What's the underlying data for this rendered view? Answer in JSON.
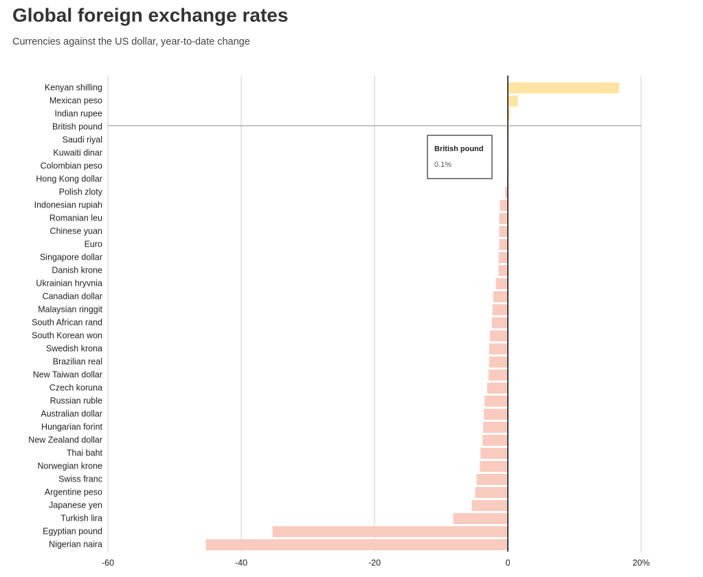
{
  "chart_data": {
    "type": "hbar",
    "title": "Global foreign exchange rates",
    "subtitle": "Currencies against the US dollar, year-to-date change",
    "categories": [
      "Kenyan shilling",
      "Mexican peso",
      "Indian rupee",
      "British pound",
      "Saudi riyal",
      "Kuwaiti dinar",
      "Colombian peso",
      "Hong Kong dollar",
      "Polish zloty",
      "Indonesian rupiah",
      "Romanian leu",
      "Chinese yuan",
      "Euro",
      "Singapore dollar",
      "Danish krone",
      "Ukrainian hryvnia",
      "Canadian dollar",
      "Malaysian ringgit",
      "South African rand",
      "South Korean won",
      "Swedish krona",
      "Brazilian real",
      "New Taiwan dollar",
      "Czech koruna",
      "Russian ruble",
      "Australian dollar",
      "Hungarian forint",
      "New Zealand dollar",
      "Thai baht",
      "Norwegian krone",
      "Swiss franc",
      "Argentine peso",
      "Japanese yen",
      "Turkish lira",
      "Egyptian pound",
      "Nigerian naira"
    ],
    "values": [
      16.7,
      1.5,
      0.3,
      0.1,
      0,
      0,
      0,
      -0.1,
      -0.4,
      -1.2,
      -1.3,
      -1.3,
      -1.3,
      -1.4,
      -1.4,
      -1.8,
      -2.2,
      -2.3,
      -2.4,
      -2.7,
      -2.8,
      -2.8,
      -2.9,
      -3.1,
      -3.5,
      -3.6,
      -3.7,
      -3.8,
      -4.1,
      -4.2,
      -4.7,
      -4.9,
      -5.4,
      -8.2,
      -35.3,
      -45.3
    ],
    "positive_color": "#fde4a4",
    "negative_color": "#f9cbbf",
    "xlim": [
      -60,
      20
    ],
    "xticks": [
      -60,
      -40,
      -20,
      0,
      {
        "value": 20,
        "label": "20%"
      }
    ],
    "grid": true,
    "tooltip": {
      "category": "British pound",
      "value": 0.1,
      "label": "0.1%"
    }
  }
}
